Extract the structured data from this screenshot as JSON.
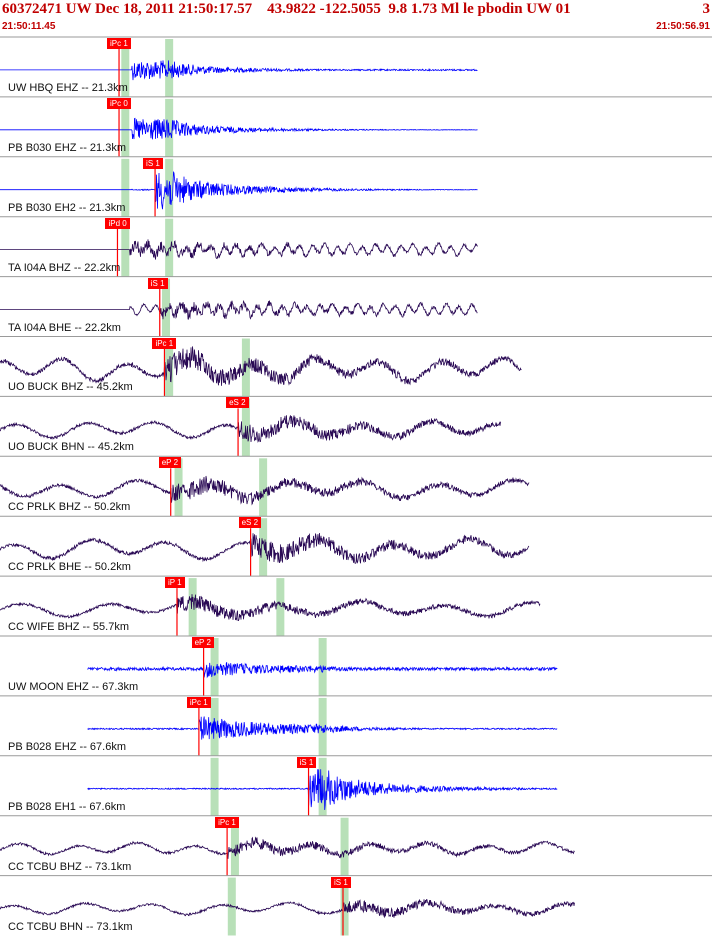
{
  "header": {
    "title": "60372471 UW Dec 18, 2011 21:50:17.57    43.9822 -122.5055  9.8 1.73 Ml le pbodin UW 01",
    "page": "3",
    "start_time": "21:50:11.45",
    "end_time": "21:50:56.91"
  },
  "colors": {
    "title": "#c00000",
    "short_period_trace": "#0000ff",
    "broadband_trace": "#2a0a55",
    "pick": "#ff0000",
    "arrival_band": "#b8e0b8",
    "separator": "#9a9a9a"
  },
  "chart_data": {
    "type": "seismogram",
    "time_start": "21:50:11.45",
    "time_end": "21:50:56.91",
    "traces": [
      {
        "label": "UW HBQ EHZ -- 21.3km",
        "type": "sp",
        "pick": "iPc 1",
        "pick_sec": 7.6,
        "band_sec": 8.0,
        "s_band_sec": 10.8,
        "quiet_end_sec": 8.4,
        "data_end_sec": 30.5,
        "amp": 0.35,
        "freq": 9,
        "noise": 0.05
      },
      {
        "label": "PB B030 EHZ -- 21.3km",
        "type": "sp",
        "pick": "iPc 0",
        "pick_sec": 7.6,
        "band_sec": 8.0,
        "s_band_sec": 10.8,
        "quiet_end_sec": 8.4,
        "data_end_sec": 30.5,
        "amp": 0.4,
        "freq": 9,
        "noise": 0.0
      },
      {
        "label": "PB B030 EH2 -- 21.3km",
        "type": "sp",
        "pick": "iS 1",
        "pick_sec": 9.9,
        "band_sec": 8.0,
        "s_band_sec": 10.8,
        "quiet_end_sec": 8.4,
        "data_end_sec": 30.5,
        "amp": 0.45,
        "freq": 8,
        "noise": 0.0
      },
      {
        "label": "TA I04A BHZ -- 22.2km",
        "type": "bb",
        "pick": "iPd 0",
        "pick_sec": 7.5,
        "band_sec": 8.0,
        "s_band_sec": 10.8,
        "quiet_end_sec": 8.3,
        "data_end_sec": 30.5,
        "amp": 0.35,
        "freq": 6,
        "noise": 0.03
      },
      {
        "label": "TA I04A BHE -- 22.2km",
        "type": "bb",
        "pick": "iS 1",
        "pick_sec": 10.2,
        "band_sec": 10.6,
        "s_band_sec": null,
        "quiet_end_sec": 8.3,
        "data_end_sec": 30.5,
        "amp": 0.35,
        "freq": 6,
        "noise": 0.03
      },
      {
        "label": "UO BUCK BHZ -- 45.2km",
        "type": "bb",
        "pick": "iPc 1",
        "pick_sec": 10.5,
        "band_sec": 10.8,
        "s_band_sec": 15.7,
        "quiet_end_sec": 0,
        "data_end_sec": 33.3,
        "amp": 0.7,
        "freq": 1.2,
        "noise": 0.06
      },
      {
        "label": "UO BUCK BHN -- 45.2km",
        "type": "bb",
        "pick": "eS 2",
        "pick_sec": 15.2,
        "band_sec": 15.7,
        "s_band_sec": null,
        "quiet_end_sec": 0,
        "data_end_sec": 32.0,
        "amp": 0.5,
        "freq": 1.1,
        "noise": 0.05
      },
      {
        "label": "CC PRLK BHZ -- 50.2km",
        "type": "bb",
        "pick": "eP 2",
        "pick_sec": 10.9,
        "band_sec": 11.4,
        "s_band_sec": 16.8,
        "quiet_end_sec": 0,
        "data_end_sec": 33.8,
        "amp": 0.55,
        "freq": 1.0,
        "noise": 0.07
      },
      {
        "label": "CC PRLK BHE -- 50.2km",
        "type": "bb",
        "pick": "eS 2",
        "pick_sec": 16.0,
        "band_sec": 16.8,
        "s_band_sec": null,
        "quiet_end_sec": 0,
        "data_end_sec": 33.8,
        "amp": 0.6,
        "freq": 1.0,
        "noise": 0.06
      },
      {
        "label": "CC WIFE BHZ -- 55.7km",
        "type": "bb",
        "pick": "iP 1",
        "pick_sec": 11.3,
        "band_sec": 12.3,
        "s_band_sec": 17.9,
        "quiet_end_sec": 0,
        "data_end_sec": 34.5,
        "amp": 0.45,
        "freq": 0.9,
        "noise": 0.05
      },
      {
        "label": "UW MOON EHZ -- 67.3km",
        "type": "sp",
        "pick": "eP 2",
        "pick_sec": 13.0,
        "band_sec": 13.7,
        "s_band_sec": 20.6,
        "quiet_end_sec": 0,
        "data_end_sec": 35.6,
        "amp": 0.3,
        "freq": 8,
        "noise": 0.15,
        "data_start_sec": 5.6
      },
      {
        "label": "PB B028 EHZ -- 67.6km",
        "type": "sp",
        "pick": "iPc 1",
        "pick_sec": 12.7,
        "band_sec": 13.7,
        "s_band_sec": 20.6,
        "quiet_end_sec": 5.6,
        "data_end_sec": 35.6,
        "amp": 0.45,
        "freq": 9,
        "noise": 0.03,
        "data_start_sec": 5.6
      },
      {
        "label": "PB B028 EH1 -- 67.6km",
        "type": "sp",
        "pick": "iS 1",
        "pick_sec": 19.7,
        "band_sec": 13.7,
        "s_band_sec": 20.6,
        "quiet_end_sec": 5.6,
        "data_end_sec": 35.6,
        "amp": 0.5,
        "freq": 9,
        "noise": 0.02,
        "data_start_sec": 5.6
      },
      {
        "label": "CC TCBU BHZ -- 73.1km",
        "type": "bb",
        "pick": "iPc 1",
        "pick_sec": 14.5,
        "band_sec": 15.0,
        "s_band_sec": 22.0,
        "quiet_end_sec": 0,
        "data_end_sec": 36.7,
        "amp": 0.35,
        "freq": 1.3,
        "noise": 0.1
      },
      {
        "label": "CC TCBU BHN -- 73.1km",
        "type": "bb",
        "pick": "iS 1",
        "pick_sec": 21.9,
        "band_sec": 14.8,
        "s_band_sec": 22.0,
        "quiet_end_sec": 0,
        "data_end_sec": 36.7,
        "amp": 0.35,
        "freq": 1.1,
        "noise": 0.09
      }
    ]
  }
}
